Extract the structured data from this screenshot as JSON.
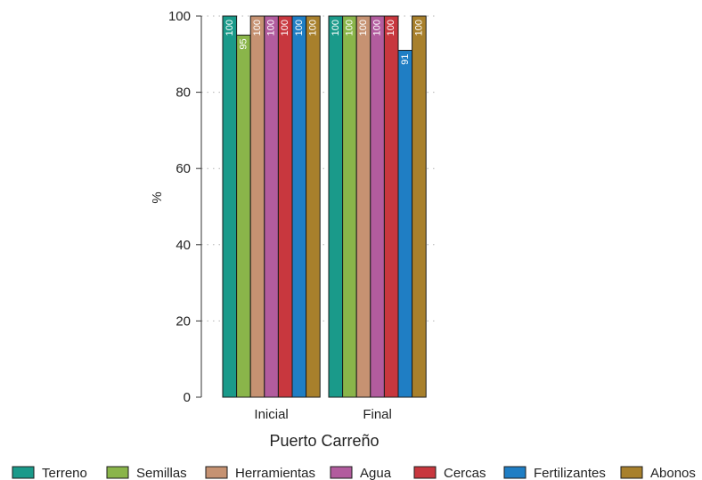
{
  "chart_data": {
    "type": "bar",
    "categories": [
      "Inicial",
      "Final"
    ],
    "series": [
      {
        "name": "Terreno",
        "values": [
          100,
          100
        ],
        "color": "#1a9a8a"
      },
      {
        "name": "Semillas",
        "values": [
          95,
          100
        ],
        "color": "#8ab54a"
      },
      {
        "name": "Herramientas",
        "values": [
          100,
          100
        ],
        "color": "#c69272"
      },
      {
        "name": "Agua",
        "values": [
          100,
          100
        ],
        "color": "#b25c9e"
      },
      {
        "name": "Cercas",
        "values": [
          100,
          100
        ],
        "color": "#c8373e"
      },
      {
        "name": "Fertilizantes",
        "values": [
          100,
          91
        ],
        "color": "#1f7ec4"
      },
      {
        "name": "Abonos",
        "values": [
          100,
          100
        ],
        "color": "#a8802c"
      }
    ],
    "title": "",
    "xlabel": "Puerto Carreño",
    "ylabel": "%",
    "ylim": [
      0,
      100
    ],
    "yticks": [
      0,
      20,
      40,
      60,
      80,
      100
    ],
    "grid": true,
    "legend_position": "bottom"
  }
}
